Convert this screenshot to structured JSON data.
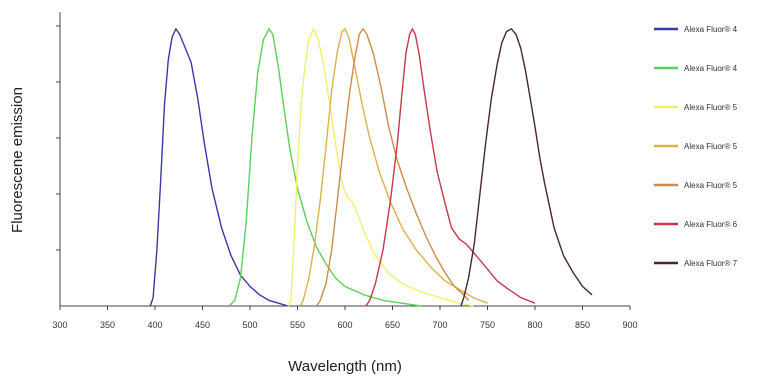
{
  "chart_data": {
    "type": "line",
    "title": "",
    "xlabel": "Wavelength (nm)",
    "ylabel": "Fluorescene emission",
    "xlim": [
      300,
      900
    ],
    "ylim": [
      0,
      1
    ],
    "x_ticks": [
      300,
      350,
      400,
      450,
      500,
      550,
      600,
      650,
      700,
      750,
      800,
      850,
      900
    ],
    "y_ticks": [
      0.2,
      0.4,
      0.6,
      0.8,
      1.0
    ],
    "grid": false,
    "legend_position": "right",
    "series": [
      {
        "name": "Alexa Fluor® 4",
        "color": "#3a3aa6",
        "points": [
          [
            395,
            0
          ],
          [
            398,
            0.03
          ],
          [
            402,
            0.2
          ],
          [
            406,
            0.45
          ],
          [
            410,
            0.72
          ],
          [
            414,
            0.88
          ],
          [
            418,
            0.96
          ],
          [
            422,
            0.99
          ],
          [
            426,
            0.97
          ],
          [
            432,
            0.92
          ],
          [
            438,
            0.87
          ],
          [
            445,
            0.74
          ],
          [
            452,
            0.58
          ],
          [
            460,
            0.42
          ],
          [
            470,
            0.28
          ],
          [
            480,
            0.18
          ],
          [
            490,
            0.11
          ],
          [
            500,
            0.07
          ],
          [
            510,
            0.04
          ],
          [
            520,
            0.02
          ],
          [
            530,
            0.01
          ],
          [
            540,
            0
          ]
        ]
      },
      {
        "name": "Alexa Fluor® 4",
        "color": "#5ad15a",
        "points": [
          [
            478,
            0
          ],
          [
            484,
            0.02
          ],
          [
            490,
            0.1
          ],
          [
            496,
            0.3
          ],
          [
            502,
            0.6
          ],
          [
            508,
            0.83
          ],
          [
            514,
            0.95
          ],
          [
            520,
            0.99
          ],
          [
            524,
            0.97
          ],
          [
            530,
            0.85
          ],
          [
            536,
            0.7
          ],
          [
            542,
            0.56
          ],
          [
            550,
            0.42
          ],
          [
            560,
            0.3
          ],
          [
            570,
            0.21
          ],
          [
            580,
            0.15
          ],
          [
            590,
            0.1
          ],
          [
            600,
            0.07
          ],
          [
            620,
            0.04
          ],
          [
            640,
            0.02
          ],
          [
            660,
            0.01
          ],
          [
            680,
            0
          ]
        ]
      },
      {
        "name": "Alexa Fluor® 5",
        "color": "#f0f070",
        "points": [
          [
            540,
            0
          ],
          [
            543,
            0.02
          ],
          [
            546,
            0.2
          ],
          [
            550,
            0.5
          ],
          [
            554,
            0.73
          ],
          [
            558,
            0.86
          ],
          [
            562,
            0.95
          ],
          [
            567,
            0.99
          ],
          [
            572,
            0.95
          ],
          [
            578,
            0.85
          ],
          [
            584,
            0.72
          ],
          [
            590,
            0.58
          ],
          [
            596,
            0.45
          ],
          [
            602,
            0.39
          ],
          [
            608,
            0.37
          ],
          [
            614,
            0.32
          ],
          [
            622,
            0.25
          ],
          [
            632,
            0.18
          ],
          [
            645,
            0.12
          ],
          [
            660,
            0.08
          ],
          [
            680,
            0.05
          ],
          [
            700,
            0.03
          ],
          [
            720,
            0.01
          ],
          [
            735,
            0
          ]
        ]
      },
      {
        "name": "Alexa Fluor® 5",
        "color": "#ddb24a",
        "points": [
          [
            553,
            0
          ],
          [
            556,
            0.02
          ],
          [
            562,
            0.1
          ],
          [
            568,
            0.22
          ],
          [
            574,
            0.38
          ],
          [
            580,
            0.57
          ],
          [
            586,
            0.77
          ],
          [
            592,
            0.91
          ],
          [
            597,
            0.98
          ],
          [
            600,
            0.99
          ],
          [
            604,
            0.96
          ],
          [
            610,
            0.86
          ],
          [
            618,
            0.72
          ],
          [
            626,
            0.6
          ],
          [
            636,
            0.48
          ],
          [
            648,
            0.37
          ],
          [
            660,
            0.28
          ],
          [
            675,
            0.2
          ],
          [
            690,
            0.14
          ],
          [
            705,
            0.09
          ],
          [
            720,
            0.06
          ],
          [
            735,
            0.03
          ],
          [
            750,
            0.01
          ]
        ]
      },
      {
        "name": "Alexa Fluor® 5",
        "color": "#d08a4c",
        "points": [
          [
            570,
            0
          ],
          [
            574,
            0.02
          ],
          [
            580,
            0.08
          ],
          [
            586,
            0.2
          ],
          [
            592,
            0.38
          ],
          [
            598,
            0.56
          ],
          [
            604,
            0.74
          ],
          [
            610,
            0.88
          ],
          [
            615,
            0.97
          ],
          [
            619,
            0.99
          ],
          [
            623,
            0.97
          ],
          [
            630,
            0.9
          ],
          [
            638,
            0.78
          ],
          [
            646,
            0.64
          ],
          [
            655,
            0.52
          ],
          [
            665,
            0.42
          ],
          [
            675,
            0.33
          ],
          [
            685,
            0.25
          ],
          [
            695,
            0.18
          ],
          [
            705,
            0.12
          ],
          [
            715,
            0.07
          ],
          [
            725,
            0.04
          ],
          [
            730,
            0.02
          ]
        ]
      },
      {
        "name": "Alexa Fluor® 6",
        "color": "#c8384a",
        "points": [
          [
            622,
            0
          ],
          [
            626,
            0.02
          ],
          [
            632,
            0.08
          ],
          [
            640,
            0.2
          ],
          [
            648,
            0.38
          ],
          [
            655,
            0.58
          ],
          [
            660,
            0.76
          ],
          [
            664,
            0.9
          ],
          [
            668,
            0.97
          ],
          [
            671,
            0.99
          ],
          [
            674,
            0.97
          ],
          [
            678,
            0.9
          ],
          [
            683,
            0.78
          ],
          [
            690,
            0.62
          ],
          [
            697,
            0.48
          ],
          [
            705,
            0.37
          ],
          [
            712,
            0.28
          ],
          [
            720,
            0.24
          ],
          [
            728,
            0.22
          ],
          [
            738,
            0.18
          ],
          [
            748,
            0.14
          ],
          [
            760,
            0.09
          ],
          [
            772,
            0.06
          ],
          [
            785,
            0.03
          ],
          [
            800,
            0.01
          ]
        ]
      },
      {
        "name": "Alexa Fluor® 7",
        "color": "#4a2828",
        "points": [
          [
            722,
            0
          ],
          [
            725,
            0.03
          ],
          [
            730,
            0.1
          ],
          [
            736,
            0.22
          ],
          [
            742,
            0.4
          ],
          [
            748,
            0.58
          ],
          [
            754,
            0.74
          ],
          [
            760,
            0.86
          ],
          [
            765,
            0.94
          ],
          [
            770,
            0.98
          ],
          [
            775,
            0.99
          ],
          [
            780,
            0.97
          ],
          [
            785,
            0.92
          ],
          [
            790,
            0.84
          ],
          [
            795,
            0.74
          ],
          [
            800,
            0.64
          ],
          [
            805,
            0.53
          ],
          [
            810,
            0.44
          ],
          [
            815,
            0.36
          ],
          [
            820,
            0.28
          ],
          [
            830,
            0.18
          ],
          [
            840,
            0.12
          ],
          [
            850,
            0.07
          ],
          [
            860,
            0.04
          ]
        ]
      }
    ]
  }
}
